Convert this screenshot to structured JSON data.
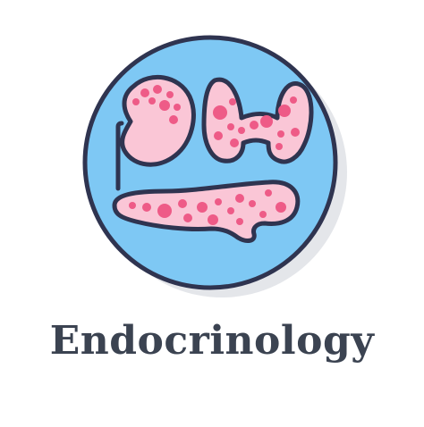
{
  "caption": {
    "text": "Endocrinology",
    "color": "#3b4351"
  },
  "icon": {
    "name": "endocrinology-icon",
    "parts": [
      "adrenal-gland-icon",
      "thyroid-gland-icon",
      "pancreas-icon"
    ],
    "colors": {
      "circle_fill": "#7ec8f4",
      "shadow": "#e4e6ea",
      "outline": "#2f3450",
      "organ_fill": "#fac6d6",
      "organ_spots": "#ee5b87"
    }
  }
}
